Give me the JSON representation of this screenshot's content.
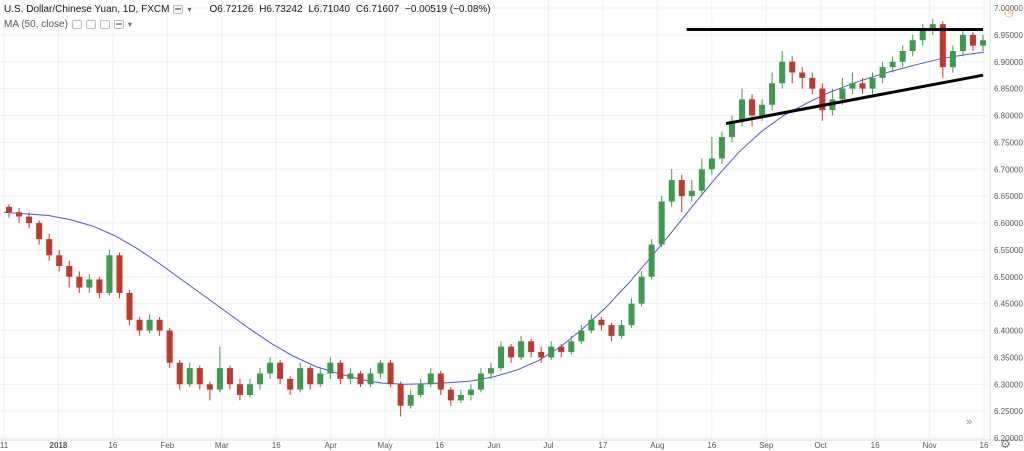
{
  "header": {
    "symbol": "U.S. Dollar/Chinese Yuan, 1D, FXCM",
    "open": "O6.72126",
    "high": "H6.73242",
    "low": "L6.71040",
    "close": "C6.71607",
    "change": "−0.00519 (−0.08%)",
    "indicator": "MA (50, close)"
  },
  "icons": {
    "alert": "alert-clock-icon",
    "scroll": "chevron-double-right-icon",
    "settings": "gear-icon"
  },
  "colors": {
    "up": "#3c9c4c",
    "down": "#c0392b",
    "ma": "#4d52e0",
    "trendline": "#000000",
    "grid": "#eef0f3"
  },
  "chart_data": {
    "type": "candlestick",
    "y_ticks": [
      "7.00000",
      "6.95000",
      "6.90000",
      "6.85000",
      "6.80000",
      "6.75000",
      "6.70000",
      "6.65000",
      "6.60000",
      "6.55000",
      "6.50000",
      "6.45000",
      "6.40000",
      "6.35000",
      "6.30000",
      "6.25000",
      "6.20000"
    ],
    "ylim": [
      6.2,
      7.0
    ],
    "x_ticks": [
      "11",
      "2018",
      "16",
      "Feb",
      "Mar",
      "16",
      "Apr",
      "May",
      "16",
      "Jun",
      "Jul",
      "17",
      "Aug",
      "16",
      "Sep",
      "Oct",
      "16",
      "Nov",
      "16"
    ],
    "grid": true,
    "ma_label": "MA (50, close)",
    "ma_values": [
      6.62,
      6.617,
      6.614,
      6.606,
      6.594,
      6.576,
      6.552,
      6.524,
      6.494,
      6.464,
      6.434,
      6.404,
      6.376,
      6.352,
      6.333,
      6.32,
      6.309,
      6.302,
      6.3,
      6.301,
      6.303,
      6.306,
      6.314,
      6.326,
      6.344,
      6.37,
      6.404,
      6.442,
      6.486,
      6.534,
      6.584,
      6.636,
      6.686,
      6.732,
      6.77,
      6.8,
      6.822,
      6.842,
      6.858,
      6.872,
      6.884,
      6.895,
      6.905,
      6.912,
      6.918
    ],
    "candles": [
      [
        6.63,
        6.62,
        6.635,
        6.61
      ],
      [
        6.62,
        6.612,
        6.628,
        6.6
      ],
      [
        6.612,
        6.6,
        6.62,
        6.59
      ],
      [
        6.6,
        6.57,
        6.605,
        6.56
      ],
      [
        6.57,
        6.54,
        6.58,
        6.53
      ],
      [
        6.54,
        6.52,
        6.55,
        6.51
      ],
      [
        6.52,
        6.5,
        6.53,
        6.48
      ],
      [
        6.5,
        6.48,
        6.51,
        6.47
      ],
      [
        6.48,
        6.495,
        6.505,
        6.47
      ],
      [
        6.495,
        6.47,
        6.5,
        6.46
      ],
      [
        6.47,
        6.54,
        6.55,
        6.465
      ],
      [
        6.54,
        6.47,
        6.545,
        6.46
      ],
      [
        6.47,
        6.42,
        6.475,
        6.41
      ],
      [
        6.42,
        6.4,
        6.425,
        6.39
      ],
      [
        6.4,
        6.42,
        6.43,
        6.395
      ],
      [
        6.42,
        6.4,
        6.425,
        6.39
      ],
      [
        6.4,
        6.34,
        6.405,
        6.33
      ],
      [
        6.34,
        6.3,
        6.345,
        6.29
      ],
      [
        6.3,
        6.33,
        6.34,
        6.295
      ],
      [
        6.33,
        6.3,
        6.335,
        6.29
      ],
      [
        6.3,
        6.29,
        6.305,
        6.27
      ],
      [
        6.29,
        6.33,
        6.37,
        6.285
      ],
      [
        6.33,
        6.3,
        6.335,
        6.29
      ],
      [
        6.3,
        6.28,
        6.31,
        6.27
      ],
      [
        6.28,
        6.3,
        6.31,
        6.275
      ],
      [
        6.3,
        6.32,
        6.33,
        6.29
      ],
      [
        6.32,
        6.34,
        6.35,
        6.31
      ],
      [
        6.34,
        6.31,
        6.345,
        6.3
      ],
      [
        6.31,
        6.29,
        6.315,
        6.28
      ],
      [
        6.29,
        6.33,
        6.34,
        6.285
      ],
      [
        6.33,
        6.3,
        6.335,
        6.29
      ],
      [
        6.3,
        6.32,
        6.33,
        6.295
      ],
      [
        6.32,
        6.34,
        6.35,
        6.31
      ],
      [
        6.34,
        6.31,
        6.345,
        6.3
      ],
      [
        6.31,
        6.32,
        6.33,
        6.3
      ],
      [
        6.32,
        6.3,
        6.325,
        6.295
      ],
      [
        6.3,
        6.32,
        6.33,
        6.295
      ],
      [
        6.32,
        6.34,
        6.345,
        6.31
      ],
      [
        6.34,
        6.3,
        6.345,
        6.295
      ],
      [
        6.3,
        6.26,
        6.305,
        6.24
      ],
      [
        6.26,
        6.28,
        6.29,
        6.255
      ],
      [
        6.28,
        6.3,
        6.31,
        6.275
      ],
      [
        6.3,
        6.32,
        6.33,
        6.295
      ],
      [
        6.32,
        6.29,
        6.325,
        6.28
      ],
      [
        6.29,
        6.27,
        6.295,
        6.26
      ],
      [
        6.27,
        6.28,
        6.29,
        6.265
      ],
      [
        6.28,
        6.29,
        6.3,
        6.27
      ],
      [
        6.29,
        6.32,
        6.33,
        6.285
      ],
      [
        6.32,
        6.33,
        6.34,
        6.31
      ],
      [
        6.33,
        6.37,
        6.38,
        6.325
      ],
      [
        6.37,
        6.35,
        6.375,
        6.34
      ],
      [
        6.35,
        6.38,
        6.39,
        6.345
      ],
      [
        6.38,
        6.36,
        6.385,
        6.35
      ],
      [
        6.36,
        6.35,
        6.37,
        6.34
      ],
      [
        6.35,
        6.37,
        6.38,
        6.345
      ],
      [
        6.37,
        6.36,
        6.375,
        6.35
      ],
      [
        6.36,
        6.38,
        6.39,
        6.355
      ],
      [
        6.38,
        6.4,
        6.41,
        6.375
      ],
      [
        6.4,
        6.42,
        6.43,
        6.395
      ],
      [
        6.42,
        6.41,
        6.425,
        6.4
      ],
      [
        6.41,
        6.39,
        6.415,
        6.38
      ],
      [
        6.39,
        6.41,
        6.42,
        6.385
      ],
      [
        6.41,
        6.45,
        6.46,
        6.405
      ],
      [
        6.45,
        6.5,
        6.51,
        6.445
      ],
      [
        6.5,
        6.56,
        6.57,
        6.495
      ],
      [
        6.56,
        6.64,
        6.65,
        6.555
      ],
      [
        6.64,
        6.68,
        6.7,
        6.63
      ],
      [
        6.68,
        6.65,
        6.69,
        6.62
      ],
      [
        6.65,
        6.66,
        6.68,
        6.64
      ],
      [
        6.66,
        6.7,
        6.72,
        6.65
      ],
      [
        6.7,
        6.72,
        6.76,
        6.69
      ],
      [
        6.72,
        6.76,
        6.77,
        6.71
      ],
      [
        6.76,
        6.79,
        6.8,
        6.75
      ],
      [
        6.79,
        6.83,
        6.85,
        6.78
      ],
      [
        6.83,
        6.8,
        6.84,
        6.78
      ],
      [
        6.8,
        6.82,
        6.83,
        6.79
      ],
      [
        6.82,
        6.86,
        6.88,
        6.81
      ],
      [
        6.86,
        6.9,
        6.92,
        6.85
      ],
      [
        6.9,
        6.88,
        6.91,
        6.86
      ],
      [
        6.88,
        6.87,
        6.89,
        6.85
      ],
      [
        6.87,
        6.85,
        6.88,
        6.84
      ],
      [
        6.85,
        6.81,
        6.86,
        6.79
      ],
      [
        6.81,
        6.83,
        6.85,
        6.8
      ],
      [
        6.83,
        6.85,
        6.87,
        6.82
      ],
      [
        6.85,
        6.86,
        6.88,
        6.84
      ],
      [
        6.86,
        6.85,
        6.87,
        6.84
      ],
      [
        6.85,
        6.87,
        6.88,
        6.84
      ],
      [
        6.87,
        6.89,
        6.9,
        6.86
      ],
      [
        6.89,
        6.9,
        6.91,
        6.88
      ],
      [
        6.9,
        6.92,
        6.93,
        6.89
      ],
      [
        6.92,
        6.94,
        6.95,
        6.91
      ],
      [
        6.94,
        6.96,
        6.97,
        6.93
      ],
      [
        6.96,
        6.97,
        6.98,
        6.95
      ],
      [
        6.97,
        6.89,
        6.975,
        6.87
      ],
      [
        6.89,
        6.92,
        6.93,
        6.88
      ],
      [
        6.92,
        6.95,
        6.96,
        6.91
      ],
      [
        6.95,
        6.93,
        6.955,
        6.92
      ],
      [
        6.93,
        6.94,
        6.95,
        6.92
      ]
    ],
    "candle_fields": [
      "open",
      "close",
      "high",
      "low"
    ],
    "trendlines": [
      {
        "name": "resistance",
        "from": [
          0.695,
          6.96
        ],
        "to": [
          0.995,
          6.96
        ]
      },
      {
        "name": "support",
        "from": [
          0.735,
          6.785
        ],
        "to": [
          0.995,
          6.875
        ]
      }
    ]
  }
}
